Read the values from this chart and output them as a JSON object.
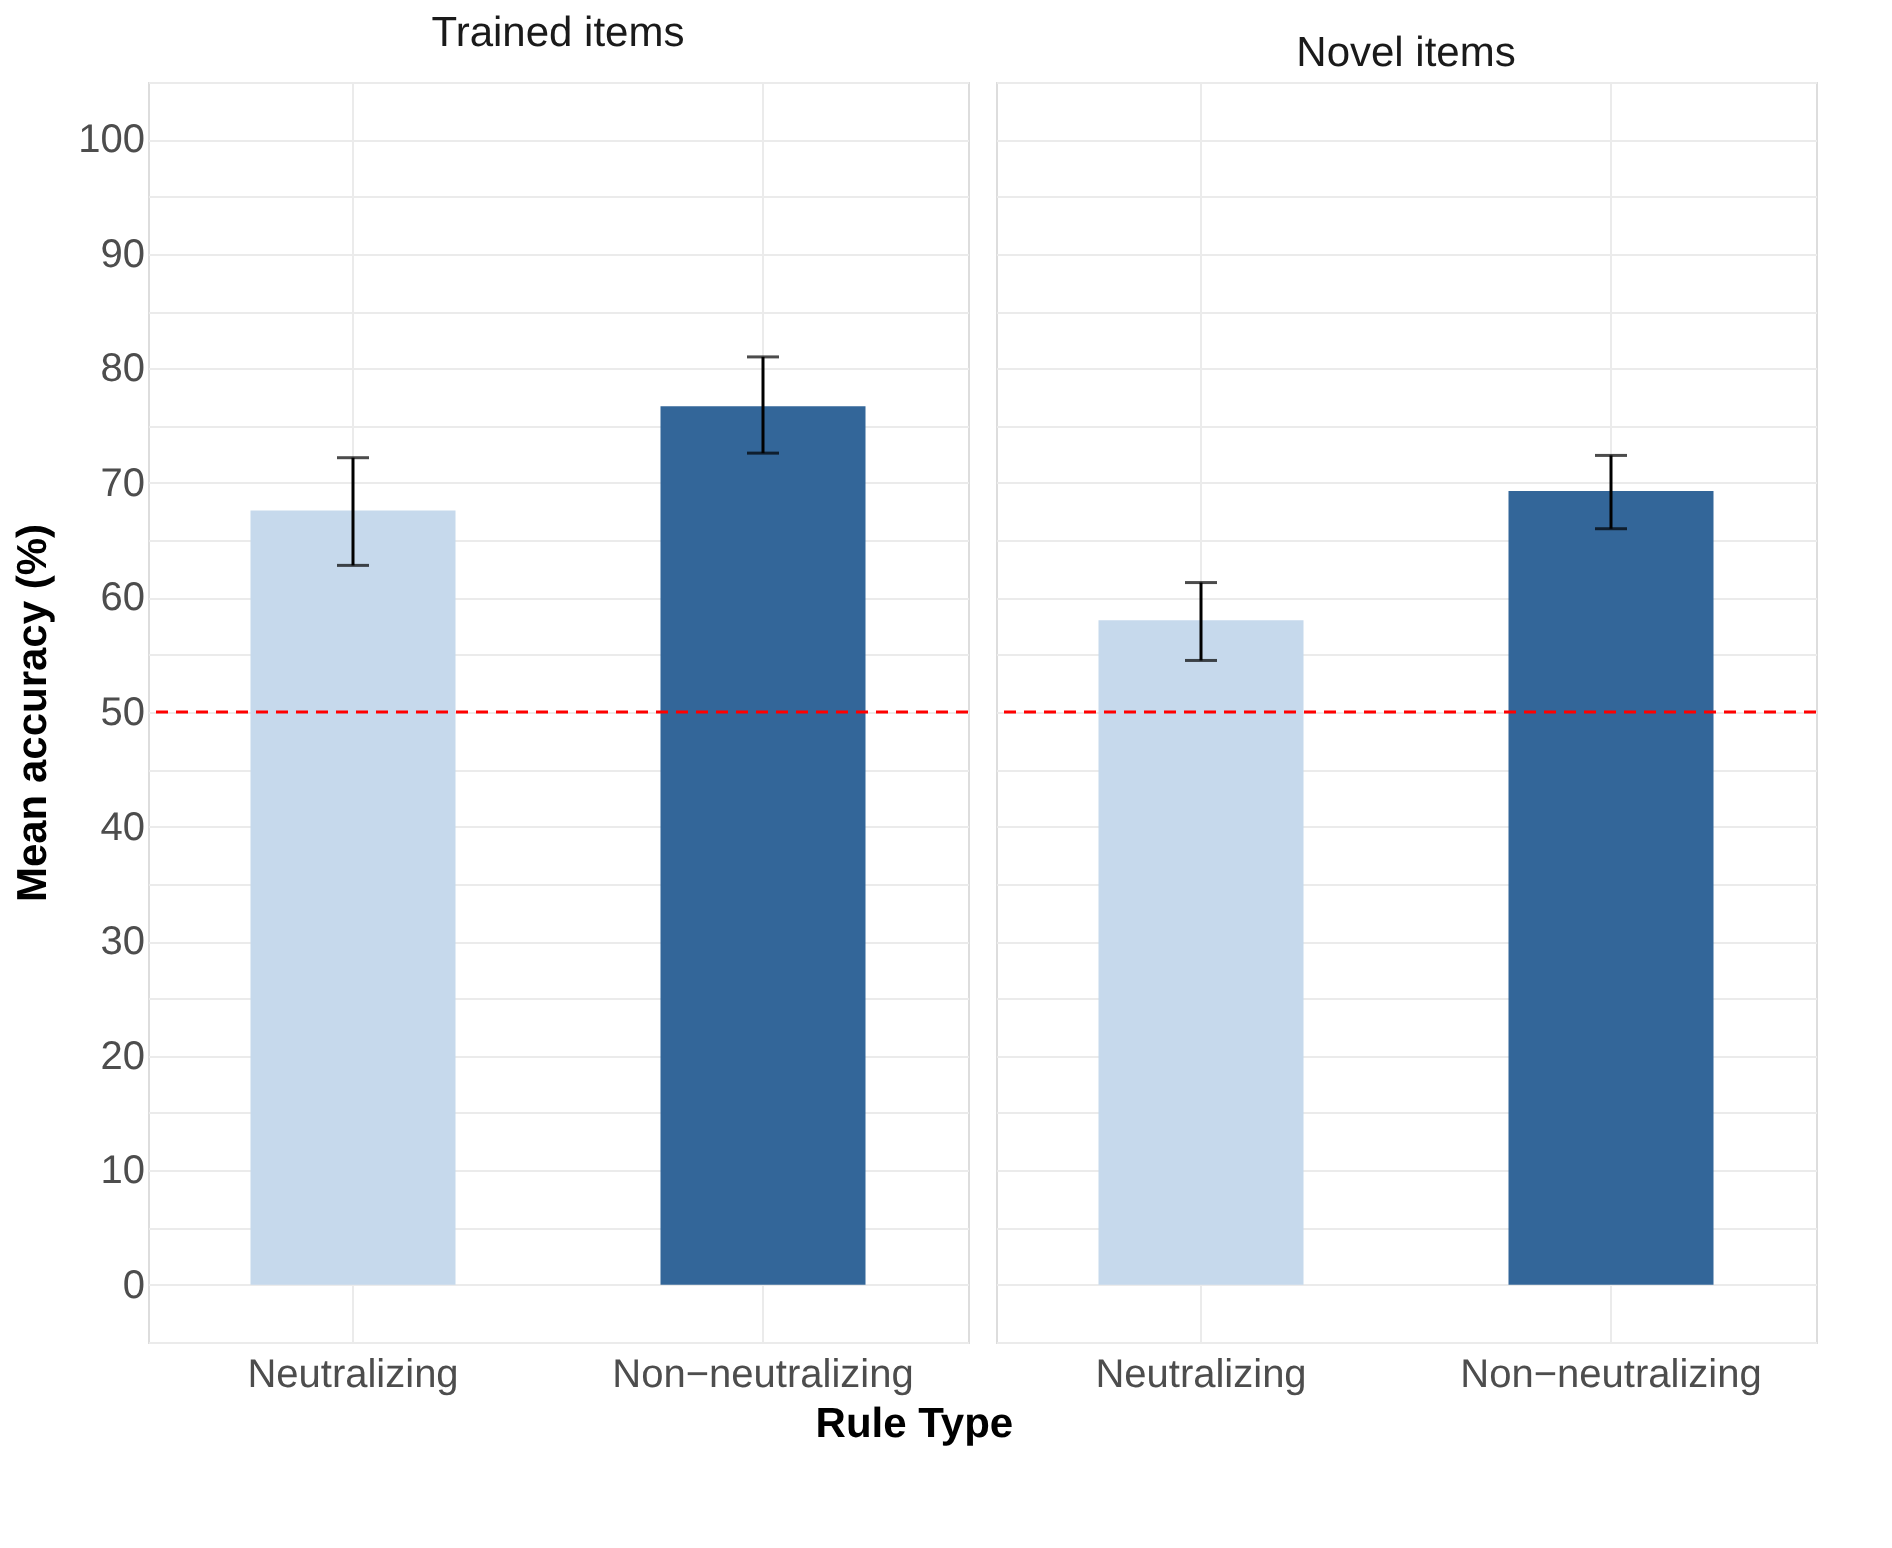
{
  "chart_data": [
    {
      "type": "bar",
      "title": "Trained items",
      "xlabel": "Rule Type",
      "ylabel": "Mean accuracy (%)",
      "categories": [
        "Neutralizing",
        "Non−neutralizing"
      ],
      "values": [
        67.6,
        76.7
      ],
      "colors": [
        "#c6d9ec",
        "#336699"
      ],
      "errors": [
        [
          62.8,
          72.2
        ],
        [
          72.6,
          81.0
        ]
      ],
      "ylim": [
        -5,
        105
      ],
      "yticks": [
        {
          "value": -5,
          "label": null
        },
        0,
        {
          "value": 5,
          "label": null
        },
        10,
        {
          "value": 15,
          "label": null
        },
        20,
        {
          "value": 25,
          "label": null
        },
        30,
        {
          "value": 35,
          "label": null
        },
        40,
        {
          "value": 45,
          "label": null
        },
        50,
        {
          "value": 55,
          "label": null
        },
        60,
        {
          "value": 65,
          "label": null
        },
        70,
        {
          "value": 75,
          "label": null
        },
        80,
        {
          "value": 85,
          "label": null
        },
        90,
        {
          "value": 95,
          "label": null
        },
        100,
        {
          "value": 105,
          "label": null
        }
      ],
      "ref_lines": [
        {
          "axis": "y",
          "value": 50,
          "color": "#ff0000",
          "line_style": "dashed"
        }
      ],
      "grid": true
    },
    {
      "type": "bar",
      "title": "Novel items",
      "categories": [
        "Neutralizing",
        "Non−neutralizing"
      ],
      "values": [
        58.0,
        69.3
      ],
      "colors": [
        "#c6d9ec",
        "#336699"
      ],
      "errors": [
        [
          54.5,
          61.3
        ],
        [
          66.0,
          72.4
        ]
      ],
      "ylim": [
        -5,
        105
      ],
      "yticks": [
        {
          "value": -5,
          "label": null
        },
        0,
        {
          "value": 5,
          "label": null
        },
        10,
        {
          "value": 15,
          "label": null
        },
        20,
        {
          "value": 25,
          "label": null
        },
        30,
        {
          "value": 35,
          "label": null
        },
        40,
        {
          "value": 45,
          "label": null
        },
        50,
        {
          "value": 55,
          "label": null
        },
        60,
        {
          "value": 65,
          "label": null
        },
        70,
        {
          "value": 75,
          "label": null
        },
        80,
        {
          "value": 85,
          "label": null
        },
        90,
        {
          "value": 95,
          "label": null
        },
        100,
        {
          "value": 105,
          "label": null
        }
      ],
      "ref_lines": [
        {
          "axis": "y",
          "value": 50,
          "color": "#ff0000",
          "line_style": "dashed"
        }
      ],
      "grid": true,
      "tick_labels": "x"
    }
  ]
}
